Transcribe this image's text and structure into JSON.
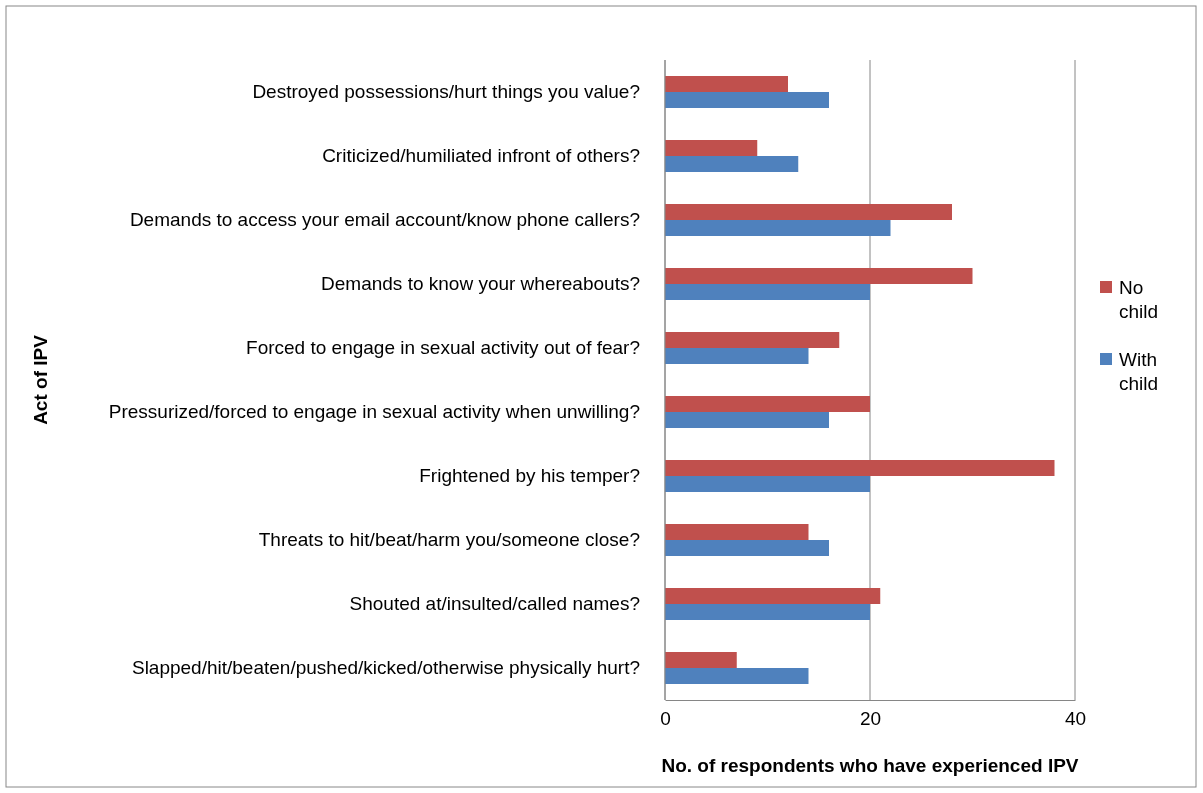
{
  "chart_data": {
    "type": "bar",
    "orientation": "horizontal",
    "xlabel": "No. of respondents who have experienced IPV",
    "ylabel": "Act of IPV",
    "categories": [
      "Destroyed possessions/hurt things you value?",
      "Criticized/humiliated infront of others?",
      "Demands to access your email account/know phone callers?",
      "Demands to know your whereabouts?",
      "Forced to engage in sexual activity out of fear?",
      "Pressurized/forced to engage in sexual activity when unwilling?",
      "Frightened by his temper?",
      "Threats to hit/beat/harm you/someone close?",
      "Shouted at/insulted/called names?",
      "Slapped/hit/beaten/pushed/kicked/otherwise physically hurt?"
    ],
    "series": [
      {
        "name": "No child",
        "color": "#c0504d",
        "values": [
          12,
          9,
          28,
          30,
          17,
          20,
          38,
          14,
          21,
          7
        ]
      },
      {
        "name": "With child",
        "color": "#4f81bd",
        "values": [
          16,
          13,
          22,
          20,
          14,
          16,
          20,
          16,
          20,
          14
        ]
      }
    ],
    "xlim": [
      0,
      40
    ],
    "xticks": [
      0,
      20,
      40
    ],
    "grid": "x",
    "legend": "right"
  }
}
